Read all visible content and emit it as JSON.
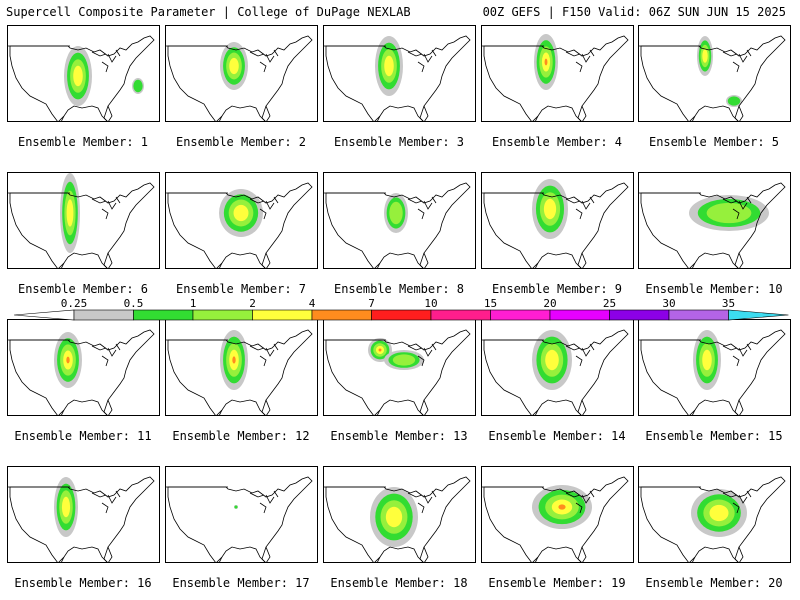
{
  "header": {
    "title_left": "Supercell Composite Parameter | College of DuPage NEXLAB",
    "title_right": "00Z GEFS | F150 Valid: 06Z SUN JUN 15 2025"
  },
  "member_label_prefix": "Ensemble Member:",
  "members": [
    {
      "label": "Ensemble Member: 1",
      "number": 1
    },
    {
      "label": "Ensemble Member: 2",
      "number": 2
    },
    {
      "label": "Ensemble Member: 3",
      "number": 3
    },
    {
      "label": "Ensemble Member: 4",
      "number": 4
    },
    {
      "label": "Ensemble Member: 5",
      "number": 5
    },
    {
      "label": "Ensemble Member: 6",
      "number": 6
    },
    {
      "label": "Ensemble Member: 7",
      "number": 7
    },
    {
      "label": "Ensemble Member: 8",
      "number": 8
    },
    {
      "label": "Ensemble Member: 9",
      "number": 9
    },
    {
      "label": "Ensemble Member: 10",
      "number": 10
    },
    {
      "label": "Ensemble Member: 11",
      "number": 11
    },
    {
      "label": "Ensemble Member: 12",
      "number": 12
    },
    {
      "label": "Ensemble Member: 13",
      "number": 13
    },
    {
      "label": "Ensemble Member: 14",
      "number": 14
    },
    {
      "label": "Ensemble Member: 15",
      "number": 15
    },
    {
      "label": "Ensemble Member: 16",
      "number": 16
    },
    {
      "label": "Ensemble Member: 17",
      "number": 17
    },
    {
      "label": "Ensemble Member: 18",
      "number": 18
    },
    {
      "label": "Ensemble Member: 19",
      "number": 19
    },
    {
      "label": "Ensemble Member: 20",
      "number": 20
    }
  ],
  "colorbar": {
    "thresholds": [
      "0.25",
      "0.5",
      "1",
      "2",
      "4",
      "7",
      "10",
      "15",
      "20",
      "25",
      "30",
      "35"
    ],
    "colors": [
      "#ffffff",
      "#c8c8c8",
      "#32dc32",
      "#96f03c",
      "#ffff3c",
      "#ff8c1e",
      "#ff1e1e",
      "#ff1e8c",
      "#ff1ed2",
      "#e600ff",
      "#8c00e6",
      "#b464e6",
      "#3cdcf0"
    ]
  }
}
